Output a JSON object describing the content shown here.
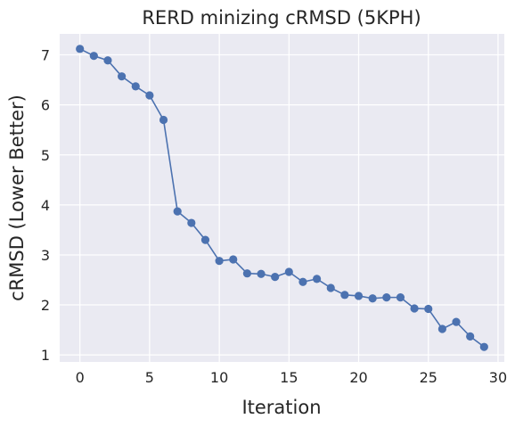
{
  "chart_data": {
    "type": "line",
    "title": "RERD minizing cRMSD (5KPH)",
    "xlabel": "Iteration",
    "ylabel": "cRMSD (Lower Better)",
    "x": [
      0,
      1,
      2,
      3,
      4,
      5,
      6,
      7,
      8,
      9,
      10,
      11,
      12,
      13,
      14,
      15,
      16,
      17,
      18,
      19,
      20,
      21,
      22,
      23,
      24,
      25,
      26,
      27,
      28,
      29
    ],
    "series": [
      {
        "values": [
          7.12,
          6.98,
          6.89,
          6.57,
          6.37,
          6.19,
          5.7,
          3.87,
          3.64,
          3.3,
          2.88,
          2.91,
          2.63,
          2.62,
          2.56,
          2.66,
          2.46,
          2.52,
          2.34,
          2.2,
          2.18,
          2.13,
          2.15,
          2.15,
          1.93,
          1.92,
          1.52,
          1.66,
          1.37,
          1.16
        ],
        "color": "#4c72b0",
        "marker": "circle"
      }
    ],
    "xlim": [
      -1.45,
      30.45
    ],
    "ylim": [
      0.86,
      7.42
    ],
    "xticks": [
      "0",
      "5",
      "10",
      "15",
      "20",
      "25",
      "30"
    ],
    "yticks": [
      "1",
      "2",
      "3",
      "4",
      "5",
      "6",
      "7"
    ],
    "grid": true,
    "background": "#eaeaf2",
    "grid_color": "#ffffff"
  }
}
